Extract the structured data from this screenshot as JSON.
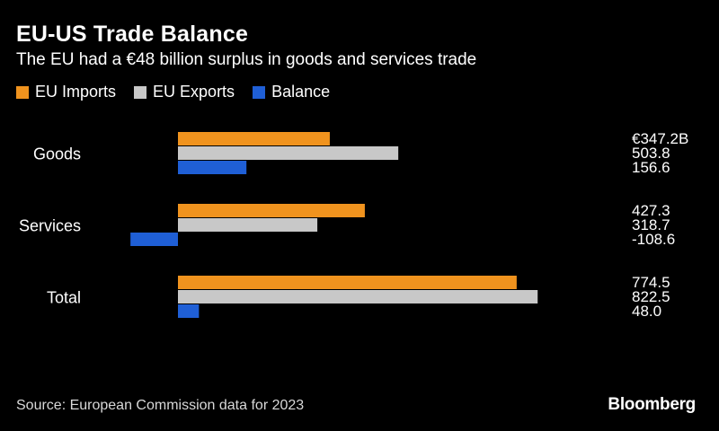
{
  "header": {
    "title": "EU-US Trade Balance",
    "subtitle": "The EU had a €48 billion surplus in goods and services trade"
  },
  "legend": [
    {
      "label": "EU Imports",
      "color": "#F0931E"
    },
    {
      "label": "EU Exports",
      "color": "#C8C8C8"
    },
    {
      "label": "Balance",
      "color": "#1F5FD6"
    }
  ],
  "chart_data": {
    "type": "bar",
    "orientation": "horizontal",
    "categories": [
      "Goods",
      "Services",
      "Total"
    ],
    "series": [
      {
        "name": "EU Imports",
        "values": [
          347.2,
          427.3,
          774.5
        ],
        "labels": [
          "€347.2B",
          "427.3",
          "774.5"
        ],
        "color": "#F0931E"
      },
      {
        "name": "EU Exports",
        "values": [
          503.8,
          318.7,
          822.5
        ],
        "labels": [
          "503.8",
          "318.7",
          "822.5"
        ],
        "color": "#C8C8C8"
      },
      {
        "name": "Balance",
        "values": [
          156.6,
          -108.6,
          48.0
        ],
        "labels": [
          "156.6",
          "-108.6",
          "48.0"
        ],
        "color": "#1F5FD6"
      }
    ],
    "grid": false,
    "legend_position": "top-left"
  },
  "footer": {
    "source": "Source: European Commission data for 2023",
    "brand": "Bloomberg"
  }
}
